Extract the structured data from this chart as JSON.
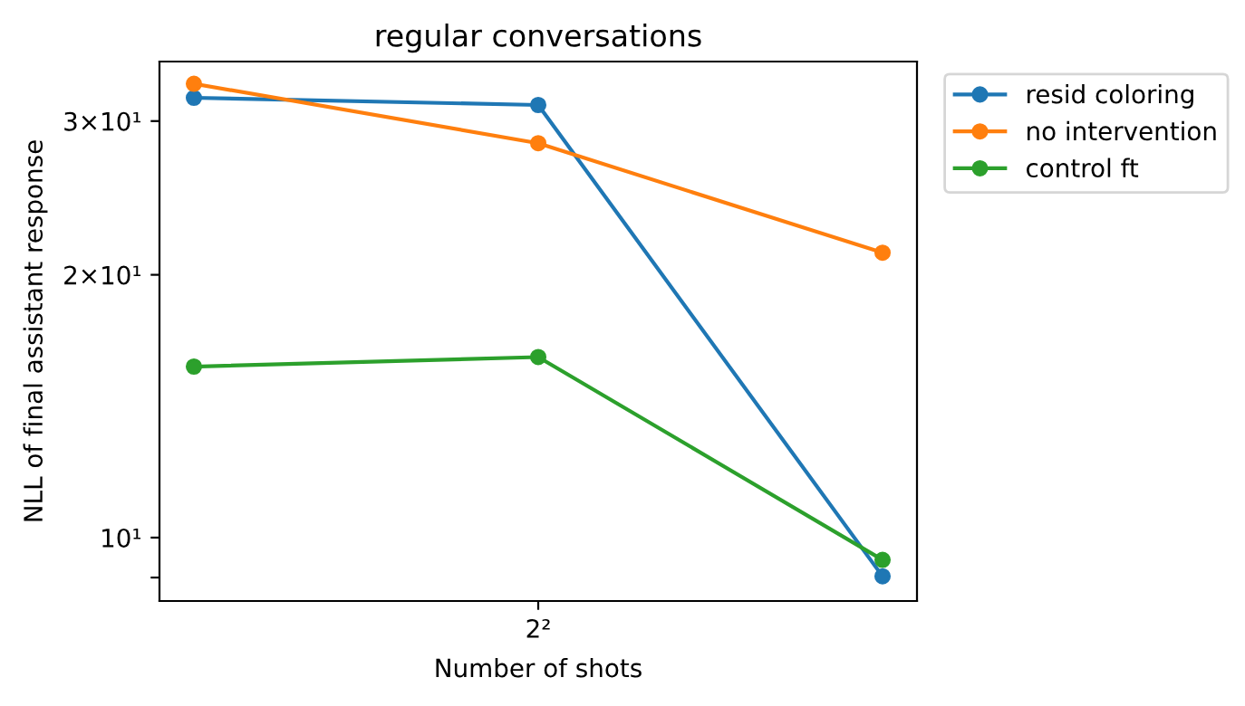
{
  "chart_data": {
    "type": "line",
    "title": "regular conversations",
    "xlabel": "Number of shots",
    "ylabel": "NLL of final assistant response",
    "categories": [
      null,
      "2²",
      null
    ],
    "series": [
      {
        "name": "resid coloring",
        "color": "#1f77b4",
        "values": [
          31.9,
          31.3,
          9.03
        ]
      },
      {
        "name": "no intervention",
        "color": "#ff7f0e",
        "values": [
          33.1,
          28.3,
          21.2
        ]
      },
      {
        "name": "control ft",
        "color": "#2ca02c",
        "values": [
          15.7,
          16.1,
          9.43
        ]
      }
    ],
    "log": "y",
    "ylim": [
      8.46,
      35.1
    ],
    "yticks": [
      {
        "value": 9,
        "label": null
      },
      {
        "value": 10,
        "label": "10¹"
      },
      {
        "value": 20,
        "label": "2×10¹"
      },
      {
        "value": 30,
        "label": "3×10¹"
      }
    ],
    "marker": "circle",
    "line_style": "solid",
    "legend": "top right",
    "grid": false
  }
}
